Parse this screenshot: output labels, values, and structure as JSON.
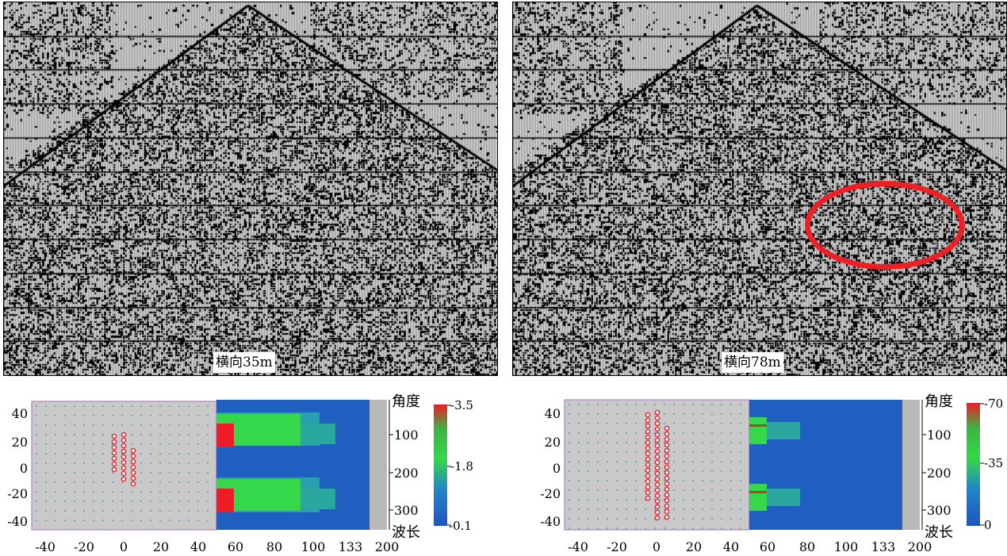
{
  "panels": [
    {
      "offset_label": "横向35m",
      "colorbar": {
        "max_label": "-3.5",
        "mid_label": "-1.8",
        "min_label": "-0.1"
      }
    },
    {
      "offset_label": "横向78m",
      "colorbar": {
        "max_label": "-70",
        "mid_label": "-35",
        "min_label": "0"
      }
    }
  ],
  "shared_axes": {
    "x_ticks": [
      "-40",
      "-20",
      "0",
      "20",
      "40",
      "60",
      "80",
      "100",
      "133",
      "200"
    ],
    "y_ticks": [
      "40",
      "20",
      "0",
      "-20",
      "-40"
    ],
    "right_ticks": [
      "100",
      "200",
      "300"
    ],
    "angle_label": "角度",
    "wavelength_label": "波长"
  },
  "colors": {
    "annotation_circle": "#ee1f25",
    "grid_bg": "#c9c9c9",
    "grid_dot": "#2e8f9a",
    "spectrum_blue": "#1f5fc2",
    "spectrum_green": "#35d84a",
    "spectrum_red": "#ee1c25"
  },
  "icons": {
    "sensor_marker": "small-red-circle-marker"
  }
}
